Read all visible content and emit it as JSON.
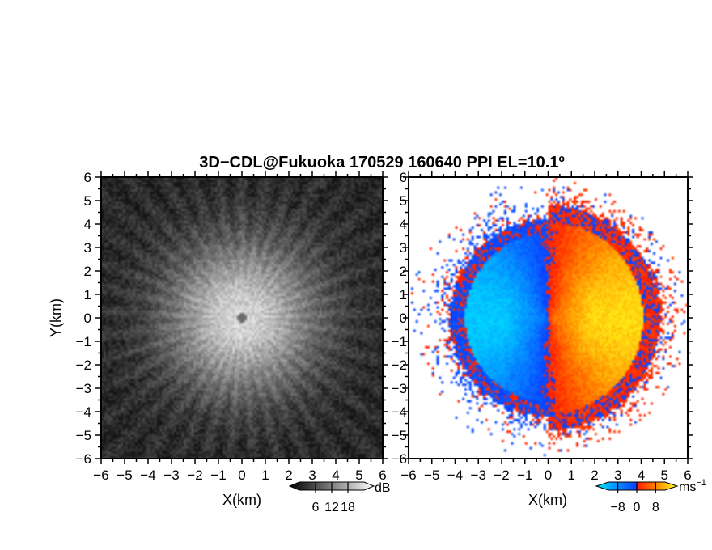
{
  "chart_data": {
    "title": "3D−CDL@Fukuoka 170529 160640 PPI EL=10.1º",
    "panels": [
      {
        "id": "intensity",
        "type": "heatmap",
        "description_quantity": "signal intensity",
        "xlabel": "X(km)",
        "ylabel": "Y(km)",
        "xlim": [
          -6,
          6
        ],
        "ylim": [
          -6,
          6
        ],
        "x_ticks": [
          "−6",
          "−5",
          "−4",
          "−3",
          "−2",
          "−1",
          "0",
          "1",
          "2",
          "3",
          "4",
          "5",
          "6"
        ],
        "y_ticks": [
          "−6",
          "−5",
          "−4",
          "−3",
          "−2",
          "−1",
          "0",
          "1",
          "2",
          "3",
          "4",
          "5",
          "6"
        ],
        "colormap": "grayscale",
        "colorbar": {
          "unit": "dB",
          "ticks": [
            "6",
            "12",
            "18"
          ],
          "tick_values": [
            6,
            12,
            18
          ],
          "range": [
            0,
            24
          ]
        },
        "field": {
          "peak_value": 20,
          "background_value": 2,
          "decay_radius_km": 3.2,
          "center_blank_radius_km": 0.2
        }
      },
      {
        "id": "doppler",
        "type": "heatmap",
        "description_quantity": "radial velocity",
        "xlabel": "X(km)",
        "ylabel": "",
        "xlim": [
          -6,
          6
        ],
        "ylim": [
          -6,
          6
        ],
        "x_ticks": [
          "−6",
          "−5",
          "−4",
          "−3",
          "−2",
          "−1",
          "0",
          "1",
          "2",
          "3",
          "4",
          "5",
          "6"
        ],
        "y_ticks": [
          "−6",
          "−5",
          "−4",
          "−3",
          "−2",
          "−1",
          "0",
          "1",
          "2",
          "3",
          "4",
          "5",
          "6"
        ],
        "colormap": "cyan-blue-red-orange-yellow",
        "colorbar": {
          "unit": "ms",
          "unit_exponent": "−1",
          "ticks": [
            "−8",
            "0",
            "8"
          ],
          "tick_values": [
            -8,
            0,
            8
          ],
          "range": [
            -12,
            12
          ]
        },
        "field": {
          "max_speed_ms": 10,
          "valid_radius_km": 4.2,
          "flow_direction": "toward +x"
        }
      }
    ]
  },
  "colors": {
    "background": "#ffffff",
    "axis": "#000000",
    "vel_cyan": "#00e5ff",
    "vel_blue": "#0a3dff",
    "vel_red": "#ff1a00",
    "vel_orange": "#ff8c00",
    "vel_yellow": "#ffff1a"
  }
}
